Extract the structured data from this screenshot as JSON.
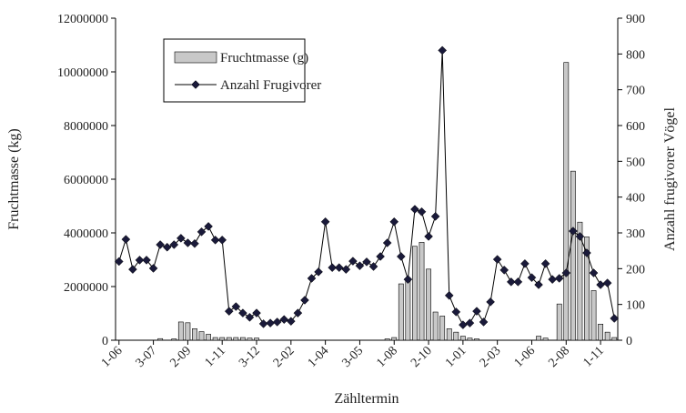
{
  "chart_data": {
    "type": "combo",
    "xlabel": "Zähltermin",
    "ylabel": "Fruchtmasse (kg)",
    "y2label": "Anzahl frugivorer Vögel",
    "categories": [
      "1-06",
      null,
      null,
      null,
      null,
      "3-07",
      null,
      null,
      null,
      null,
      "2-09",
      null,
      null,
      null,
      null,
      "1-11",
      null,
      null,
      null,
      null,
      "3-12",
      null,
      null,
      null,
      null,
      "2-02",
      null,
      null,
      null,
      null,
      "1-04",
      null,
      null,
      null,
      null,
      "3-05",
      null,
      null,
      null,
      null,
      "1-08",
      null,
      null,
      null,
      null,
      "2-10",
      null,
      null,
      null,
      null,
      "1-01",
      null,
      null,
      null,
      null,
      "2-03",
      null,
      null,
      null,
      null,
      "1-06",
      null,
      null,
      null,
      null,
      "2-08",
      null,
      null,
      null,
      null,
      "1-11",
      null,
      null
    ],
    "series": [
      {
        "name": "Fruchtmasse (g)",
        "kind": "bar",
        "color": "#c8c8c8",
        "values": [
          0,
          0,
          0,
          0,
          0,
          0,
          60000,
          0,
          50000,
          680000,
          650000,
          430000,
          320000,
          220000,
          100000,
          100000,
          100000,
          100000,
          100000,
          80000,
          80000,
          0,
          0,
          0,
          0,
          0,
          0,
          0,
          0,
          0,
          0,
          0,
          0,
          0,
          0,
          0,
          0,
          0,
          0,
          50000,
          100000,
          2100000,
          2300000,
          3500000,
          3650000,
          2650000,
          1050000,
          900000,
          430000,
          300000,
          150000,
          80000,
          50000,
          0,
          0,
          0,
          0,
          0,
          0,
          0,
          0,
          150000,
          80000,
          0,
          1350000,
          10350000,
          6300000,
          4400000,
          3850000,
          1850000,
          600000,
          300000,
          100000
        ]
      },
      {
        "name": "Anzahl Frugivorer",
        "kind": "line",
        "axis": "y2",
        "color": "#000000",
        "marker_color": "#1a1a3a",
        "values": [
          220,
          282,
          198,
          224,
          224,
          201,
          267,
          260,
          267,
          285,
          272,
          270,
          303,
          318,
          280,
          280,
          81,
          94,
          76,
          64,
          76,
          46,
          48,
          51,
          58,
          53,
          76,
          112,
          173,
          191,
          331,
          203,
          203,
          198,
          221,
          208,
          219,
          206,
          234,
          272,
          331,
          234,
          170,
          366,
          359,
          290,
          346,
          810,
          125,
          79,
          43,
          48,
          81,
          51,
          107,
          226,
          196,
          163,
          163,
          214,
          175,
          155,
          214,
          170,
          173,
          188,
          305,
          290,
          244,
          188,
          155,
          160,
          61
        ]
      }
    ],
    "ylim": [
      0,
      12000000
    ],
    "yticks": [
      0,
      2000000,
      4000000,
      6000000,
      8000000,
      10000000,
      12000000
    ],
    "y2lim": [
      0,
      900
    ],
    "y2ticks": [
      0,
      100,
      200,
      300,
      400,
      500,
      600,
      700,
      800,
      900
    ],
    "legend": "upper left",
    "grid": false
  }
}
